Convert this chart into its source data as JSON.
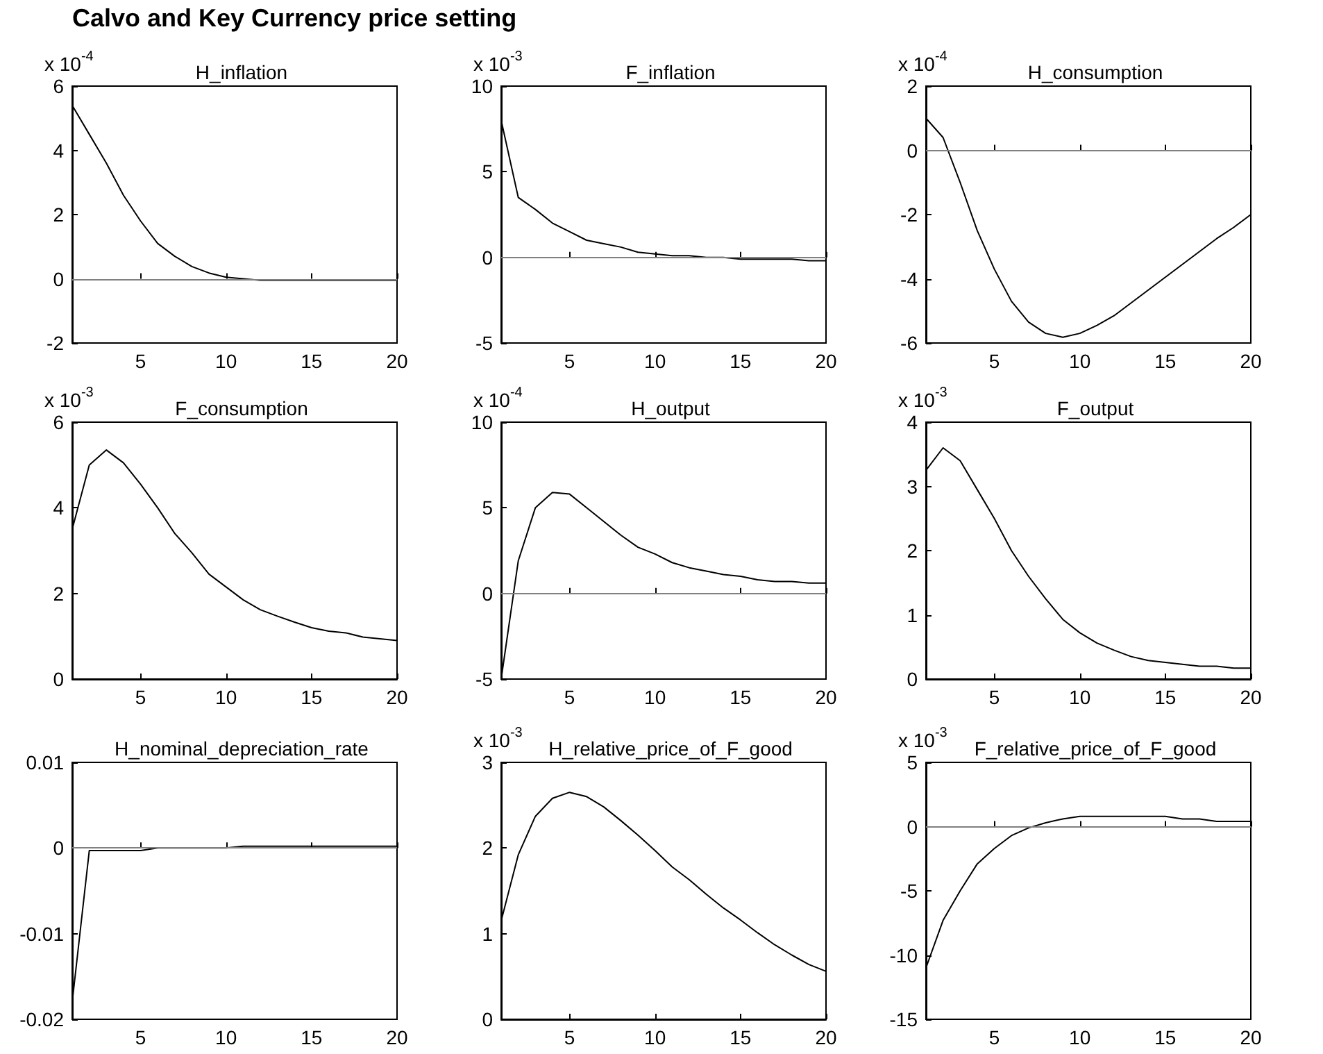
{
  "chart_data": [
    {
      "type": "line",
      "title": "H_inflation",
      "ylabel": "x 10$^{-4}$",
      "annotations": [
        "Calvo and Key Currency price setting"
      ],
      "x": [
        1,
        2,
        3,
        4,
        5,
        6,
        7,
        8,
        9,
        10,
        11,
        12,
        13,
        14,
        15,
        16,
        17,
        18,
        19,
        20
      ],
      "xlim": [
        1,
        20
      ],
      "xticks": [
        5,
        10,
        15,
        20
      ],
      "ylim": [
        -2,
        6
      ],
      "yticks": [
        -2,
        0,
        2,
        4,
        6
      ],
      "ref_lines": [
        {
          "axis": "y",
          "value": 0,
          "color": "#808080"
        }
      ],
      "series": [
        {
          "color": "#000000",
          "values": [
            5.4,
            4.5,
            3.6,
            2.6,
            1.8,
            1.1,
            0.7,
            0.38,
            0.18,
            0.05,
            0,
            -0.05,
            -0.05,
            -0.05,
            -0.05,
            -0.05,
            -0.05,
            -0.05,
            -0.05,
            -0.05
          ]
        }
      ]
    },
    {
      "type": "line",
      "title": "F_inflation",
      "ylabel": "x 10$^{-3}$",
      "x": [
        1,
        2,
        3,
        4,
        5,
        6,
        7,
        8,
        9,
        10,
        11,
        12,
        13,
        14,
        15,
        16,
        17,
        18,
        19,
        20
      ],
      "xlim": [
        1,
        20
      ],
      "xticks": [
        5,
        10,
        15,
        20
      ],
      "ylim": [
        -5,
        10
      ],
      "yticks": [
        -5,
        0,
        5,
        10
      ],
      "ref_lines": [
        {
          "axis": "y",
          "value": 0,
          "color": "#808080"
        }
      ],
      "series": [
        {
          "color": "#000000",
          "values": [
            8.0,
            3.5,
            2.8,
            2.0,
            1.5,
            1.0,
            0.8,
            0.6,
            0.3,
            0.2,
            0.1,
            0.1,
            0,
            0,
            -0.1,
            -0.1,
            -0.1,
            -0.1,
            -0.2,
            -0.2
          ]
        }
      ]
    },
    {
      "type": "line",
      "title": "H_consumption",
      "ylabel": "x 10$^{-4}$",
      "x": [
        1,
        2,
        3,
        4,
        5,
        6,
        7,
        8,
        9,
        10,
        11,
        12,
        13,
        14,
        15,
        16,
        17,
        18,
        19,
        20
      ],
      "xlim": [
        1,
        20
      ],
      "xticks": [
        5,
        10,
        15,
        20
      ],
      "ylim": [
        -6,
        2
      ],
      "yticks": [
        -6,
        -4,
        -2,
        0,
        2
      ],
      "ref_lines": [
        {
          "axis": "y",
          "value": 0,
          "color": "#808080"
        }
      ],
      "series": [
        {
          "color": "#000000",
          "values": [
            1.0,
            0.4,
            -1.0,
            -2.5,
            -3.7,
            -4.7,
            -5.35,
            -5.7,
            -5.82,
            -5.7,
            -5.45,
            -5.15,
            -4.75,
            -4.35,
            -3.95,
            -3.55,
            -3.15,
            -2.75,
            -2.4,
            -2.0
          ]
        }
      ]
    },
    {
      "type": "line",
      "title": "F_consumption",
      "ylabel": "x 10$^{-3}$",
      "x": [
        1,
        2,
        3,
        4,
        5,
        6,
        7,
        8,
        9,
        10,
        11,
        12,
        13,
        14,
        15,
        16,
        17,
        18,
        19,
        20
      ],
      "xlim": [
        1,
        20
      ],
      "xticks": [
        5,
        10,
        15,
        20
      ],
      "ylim": [
        0,
        6
      ],
      "yticks": [
        0,
        2,
        4,
        6
      ],
      "series": [
        {
          "color": "#000000",
          "values": [
            3.5,
            5.0,
            5.35,
            5.05,
            4.55,
            4.0,
            3.4,
            2.95,
            2.45,
            2.15,
            1.85,
            1.62,
            1.47,
            1.33,
            1.2,
            1.12,
            1.08,
            0.98,
            0.94,
            0.9
          ]
        }
      ]
    },
    {
      "type": "line",
      "title": "H_output",
      "ylabel": "x 10$^{-4}$",
      "x": [
        1,
        2,
        3,
        4,
        5,
        6,
        7,
        8,
        9,
        10,
        11,
        12,
        13,
        14,
        15,
        16,
        17,
        18,
        19,
        20
      ],
      "xlim": [
        1,
        20
      ],
      "xticks": [
        5,
        10,
        15,
        20
      ],
      "ylim": [
        -5,
        10
      ],
      "yticks": [
        -5,
        0,
        5,
        10
      ],
      "ref_lines": [
        {
          "axis": "y",
          "value": 0,
          "color": "#808080"
        }
      ],
      "series": [
        {
          "color": "#000000",
          "values": [
            -5,
            1.9,
            5.0,
            5.9,
            5.8,
            5.0,
            4.2,
            3.4,
            2.7,
            2.3,
            1.8,
            1.5,
            1.3,
            1.1,
            1.0,
            0.8,
            0.7,
            0.7,
            0.6,
            0.6
          ]
        }
      ]
    },
    {
      "type": "line",
      "title": "F_output",
      "ylabel": "x 10$^{-3}$",
      "x": [
        1,
        2,
        3,
        4,
        5,
        6,
        7,
        8,
        9,
        10,
        11,
        12,
        13,
        14,
        15,
        16,
        17,
        18,
        19,
        20
      ],
      "xlim": [
        1,
        20
      ],
      "xticks": [
        5,
        10,
        15,
        20
      ],
      "ylim": [
        0,
        4
      ],
      "yticks": [
        0,
        1,
        2,
        3,
        4
      ],
      "series": [
        {
          "color": "#000000",
          "values": [
            3.25,
            3.6,
            3.4,
            2.95,
            2.5,
            2.0,
            1.6,
            1.25,
            0.93,
            0.72,
            0.56,
            0.45,
            0.35,
            0.29,
            0.26,
            0.23,
            0.2,
            0.2,
            0.17,
            0.17
          ]
        }
      ]
    },
    {
      "type": "line",
      "title": "H_nominal_depreciation_rate",
      "x": [
        1,
        2,
        3,
        4,
        5,
        6,
        7,
        8,
        9,
        10,
        11,
        12,
        13,
        14,
        15,
        16,
        17,
        18,
        19,
        20
      ],
      "xlim": [
        1,
        20
      ],
      "xticks": [
        5,
        10,
        15,
        20
      ],
      "ylim": [
        -0.02,
        0.01
      ],
      "yticks": [
        -0.02,
        -0.01,
        0,
        0.01
      ],
      "ref_lines": [
        {
          "axis": "y",
          "value": 0,
          "color": "#808080"
        }
      ],
      "series": [
        {
          "color": "#000000",
          "values": [
            -0.018,
            -0.0003,
            -0.0003,
            -0.0003,
            -0.0003,
            0,
            0,
            0,
            0,
            0,
            0.0002,
            0.0002,
            0.0002,
            0.0002,
            0.0002,
            0.0002,
            0.0002,
            0.0002,
            0.0002,
            0.0002
          ]
        }
      ]
    },
    {
      "type": "line",
      "title": "H_relative_price_of_F_good",
      "ylabel": "x 10$^{-3}$",
      "x": [
        1,
        2,
        3,
        4,
        5,
        6,
        7,
        8,
        9,
        10,
        11,
        12,
        13,
        14,
        15,
        16,
        17,
        18,
        19,
        20
      ],
      "xlim": [
        1,
        20
      ],
      "xticks": [
        5,
        10,
        15,
        20
      ],
      "ylim": [
        0,
        3
      ],
      "yticks": [
        0,
        1,
        2,
        3
      ],
      "series": [
        {
          "color": "#000000",
          "values": [
            1.15,
            1.92,
            2.37,
            2.58,
            2.65,
            2.6,
            2.48,
            2.32,
            2.15,
            1.97,
            1.78,
            1.63,
            1.46,
            1.3,
            1.16,
            1.01,
            0.87,
            0.75,
            0.64,
            0.56
          ]
        }
      ]
    },
    {
      "type": "line",
      "title": "F_relative_price_of_F_good",
      "ylabel": "x 10$^{-3}$",
      "x": [
        1,
        2,
        3,
        4,
        5,
        6,
        7,
        8,
        9,
        10,
        11,
        12,
        13,
        14,
        15,
        16,
        17,
        18,
        19,
        20
      ],
      "xlim": [
        1,
        20
      ],
      "xticks": [
        5,
        10,
        15,
        20
      ],
      "ylim": [
        -15,
        5
      ],
      "yticks": [
        -15,
        -10,
        -5,
        0,
        5
      ],
      "ref_lines": [
        {
          "axis": "y",
          "value": 0,
          "color": "#808080"
        }
      ],
      "series": [
        {
          "color": "#000000",
          "values": [
            -11,
            -7.3,
            -5.0,
            -2.9,
            -1.7,
            -0.7,
            -0.1,
            0.3,
            0.6,
            0.8,
            0.8,
            0.8,
            0.8,
            0.8,
            0.8,
            0.6,
            0.6,
            0.4,
            0.4,
            0.4
          ]
        }
      ]
    }
  ]
}
